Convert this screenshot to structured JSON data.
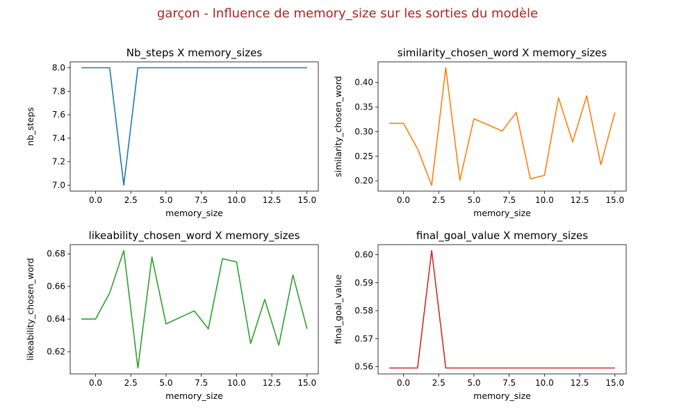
{
  "suptitle": "garçon - Influence de memory_size sur les sorties du modèle",
  "colors": {
    "title": "#b22222"
  },
  "chart_data": [
    {
      "type": "line",
      "title": "Nb_steps X memory_sizes",
      "xlabel": "memory_size",
      "ylabel": "nb_steps",
      "color": "#1f77b4",
      "x": [
        -1,
        0,
        1,
        2,
        3,
        4,
        5,
        6,
        7,
        8,
        9,
        10,
        11,
        12,
        13,
        14,
        15
      ],
      "y": [
        8.0,
        8.0,
        8.0,
        7.0,
        8.0,
        8.0,
        8.0,
        8.0,
        8.0,
        8.0,
        8.0,
        8.0,
        8.0,
        8.0,
        8.0,
        8.0,
        8.0
      ],
      "xlim": [
        -1.8,
        15.8
      ],
      "ylim": [
        6.95,
        8.05
      ],
      "xticks": [
        0.0,
        2.5,
        5.0,
        7.5,
        10.0,
        12.5,
        15.0
      ],
      "xticklabels": [
        "0.0",
        "2.5",
        "5.0",
        "7.5",
        "10.0",
        "12.5",
        "15.0"
      ],
      "yticks": [
        7.0,
        7.2,
        7.4,
        7.6,
        7.8,
        8.0
      ],
      "yticklabels": [
        "7.0",
        "7.2",
        "7.4",
        "7.6",
        "7.8",
        "8.0"
      ]
    },
    {
      "type": "line",
      "title": "similarity_chosen_word X memory_sizes",
      "xlabel": "memory_size",
      "ylabel": "similarity_chosen_word",
      "color": "#ff7f0e",
      "x": [
        -1,
        0,
        1,
        2,
        3,
        4,
        5,
        6,
        7,
        8,
        9,
        10,
        11,
        12,
        13,
        14,
        15
      ],
      "y": [
        0.317,
        0.317,
        0.265,
        0.191,
        0.43,
        0.201,
        0.326,
        0.314,
        0.301,
        0.339,
        0.204,
        0.211,
        0.369,
        0.279,
        0.373,
        0.233,
        0.339
      ],
      "xlim": [
        -1.8,
        15.8
      ],
      "ylim": [
        0.179,
        0.442
      ],
      "xticks": [
        0.0,
        2.5,
        5.0,
        7.5,
        10.0,
        12.5,
        15.0
      ],
      "xticklabels": [
        "0.0",
        "2.5",
        "5.0",
        "7.5",
        "10.0",
        "12.5",
        "15.0"
      ],
      "yticks": [
        0.2,
        0.25,
        0.3,
        0.35,
        0.4
      ],
      "yticklabels": [
        "0.20",
        "0.25",
        "0.30",
        "0.35",
        "0.40"
      ]
    },
    {
      "type": "line",
      "title": "likeability_chosen_word X memory_sizes",
      "xlabel": "memory_size",
      "ylabel": "likeability_chosen_word",
      "color": "#2ca02c",
      "x": [
        -1,
        0,
        1,
        2,
        3,
        4,
        5,
        6,
        7,
        8,
        9,
        10,
        11,
        12,
        13,
        14,
        15
      ],
      "y": [
        0.64,
        0.64,
        0.656,
        0.682,
        0.61,
        0.678,
        0.637,
        0.641,
        0.645,
        0.634,
        0.677,
        0.675,
        0.625,
        0.652,
        0.624,
        0.667,
        0.634
      ],
      "xlim": [
        -1.8,
        15.8
      ],
      "ylim": [
        0.6064,
        0.6856
      ],
      "xticks": [
        0.0,
        2.5,
        5.0,
        7.5,
        10.0,
        12.5,
        15.0
      ],
      "xticklabels": [
        "0.0",
        "2.5",
        "5.0",
        "7.5",
        "10.0",
        "12.5",
        "15.0"
      ],
      "yticks": [
        0.62,
        0.64,
        0.66,
        0.68
      ],
      "yticklabels": [
        "0.62",
        "0.64",
        "0.66",
        "0.68"
      ]
    },
    {
      "type": "line",
      "title": "final_goal_value X memory_sizes",
      "xlabel": "memory_size",
      "ylabel": "final_goal_value",
      "color": "#d62728",
      "x": [
        -1,
        0,
        1,
        2,
        3,
        4,
        5,
        6,
        7,
        8,
        9,
        10,
        11,
        12,
        13,
        14,
        15
      ],
      "y": [
        0.5595,
        0.5595,
        0.5595,
        0.6015,
        0.5595,
        0.5595,
        0.5595,
        0.5595,
        0.5595,
        0.5595,
        0.5595,
        0.5595,
        0.5595,
        0.5595,
        0.5595,
        0.5595,
        0.5595
      ],
      "xlim": [
        -1.8,
        15.8
      ],
      "ylim": [
        0.5574,
        0.6036
      ],
      "xticks": [
        0.0,
        2.5,
        5.0,
        7.5,
        10.0,
        12.5,
        15.0
      ],
      "xticklabels": [
        "0.0",
        "2.5",
        "5.0",
        "7.5",
        "10.0",
        "12.5",
        "15.0"
      ],
      "yticks": [
        0.56,
        0.57,
        0.58,
        0.59,
        0.6
      ],
      "yticklabels": [
        "0.56",
        "0.57",
        "0.58",
        "0.59",
        "0.60"
      ]
    }
  ]
}
